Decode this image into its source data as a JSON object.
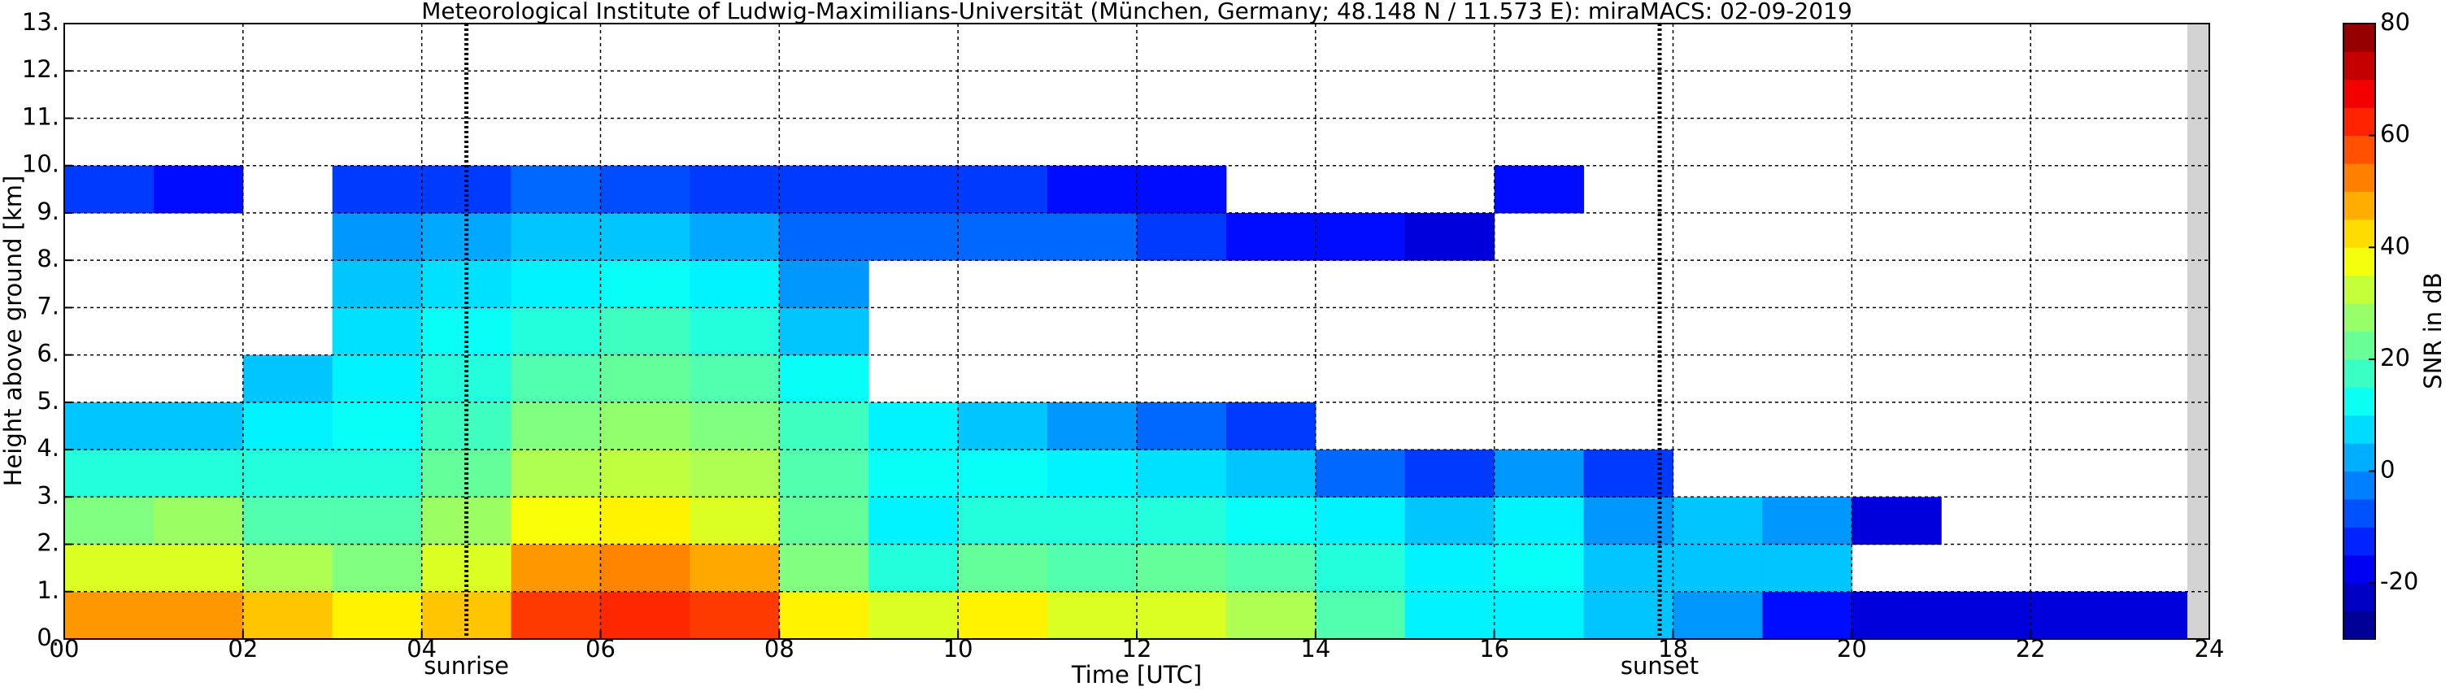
{
  "chart_data": {
    "type": "heatmap",
    "title": "Meteorological Institute of Ludwig-Maximilians-Universität (München, Germany; 48.148 N / 11.573 E):    miraMACS: 02-09-2019",
    "x_label": "Time [UTC]",
    "y_label": "Height above ground [km]",
    "x_bins": [
      0,
      1,
      2,
      3,
      4,
      5,
      6,
      7,
      8,
      9,
      10,
      11,
      12,
      13,
      14,
      15,
      16,
      17,
      18,
      19,
      20,
      21,
      22,
      23,
      24
    ],
    "y_bins": [
      0,
      1,
      2,
      3,
      4,
      5,
      6,
      7,
      8,
      9,
      10
    ],
    "z": [
      [
        50,
        50,
        45,
        40,
        45,
        60,
        62,
        60,
        40,
        35,
        40,
        35,
        35,
        30,
        20,
        10,
        10,
        5,
        0,
        -15,
        -20,
        -20,
        -20,
        -20
      ],
      [
        35,
        35,
        30,
        25,
        35,
        50,
        52,
        48,
        25,
        15,
        22,
        20,
        22,
        20,
        15,
        10,
        12,
        5,
        5,
        5,
        null,
        null,
        null,
        null
      ],
      [
        25,
        28,
        20,
        20,
        28,
        38,
        40,
        35,
        22,
        10,
        15,
        15,
        15,
        12,
        10,
        5,
        10,
        0,
        5,
        0,
        -20,
        null,
        null,
        null
      ],
      [
        15,
        15,
        15,
        15,
        22,
        30,
        32,
        30,
        20,
        12,
        12,
        10,
        8,
        5,
        -5,
        -10,
        0,
        -10,
        null,
        null,
        null,
        null,
        null,
        null
      ],
      [
        5,
        5,
        10,
        12,
        18,
        25,
        27,
        25,
        18,
        10,
        5,
        0,
        -5,
        -10,
        null,
        null,
        null,
        null,
        null,
        null,
        null,
        null,
        null,
        null
      ],
      [
        null,
        null,
        5,
        10,
        15,
        20,
        22,
        20,
        12,
        null,
        null,
        null,
        null,
        null,
        null,
        null,
        null,
        null,
        null,
        null,
        null,
        null,
        null,
        null
      ],
      [
        null,
        null,
        null,
        8,
        12,
        15,
        18,
        15,
        5,
        null,
        null,
        null,
        null,
        null,
        null,
        null,
        null,
        null,
        null,
        null,
        null,
        null,
        null,
        null
      ],
      [
        null,
        null,
        null,
        5,
        8,
        10,
        12,
        10,
        0,
        null,
        null,
        null,
        null,
        null,
        null,
        null,
        null,
        null,
        null,
        null,
        null,
        null,
        null,
        null
      ],
      [
        null,
        null,
        null,
        0,
        2,
        5,
        5,
        2,
        -5,
        -5,
        -5,
        -5,
        -10,
        -15,
        -15,
        -20,
        null,
        null,
        null,
        null,
        null,
        null,
        null,
        null
      ],
      [
        -10,
        -15,
        null,
        -10,
        -10,
        -5,
        -8,
        -10,
        -10,
        -10,
        -10,
        -15,
        -15,
        null,
        null,
        null,
        -15,
        null,
        null,
        null,
        null,
        null,
        null,
        null
      ]
    ],
    "colormap": "jet",
    "xlim": [
      0,
      24
    ],
    "xticks": [
      {
        "value": 0,
        "label": "00"
      },
      {
        "value": 2,
        "label": "02"
      },
      {
        "value": 4,
        "label": "04"
      },
      {
        "value": 6,
        "label": "06"
      },
      {
        "value": 8,
        "label": "08"
      },
      10,
      12,
      14,
      16,
      18,
      20,
      22,
      24
    ],
    "ylim": [
      0,
      13
    ],
    "yticks": [
      {
        "value": 0,
        "label": "0."
      },
      {
        "value": 1,
        "label": "1."
      },
      {
        "value": 2,
        "label": "2."
      },
      {
        "value": 3,
        "label": "3."
      },
      {
        "value": 4,
        "label": "4."
      },
      {
        "value": 5,
        "label": "5."
      },
      {
        "value": 6,
        "label": "6."
      },
      {
        "value": 7,
        "label": "7."
      },
      {
        "value": 8,
        "label": "8."
      },
      {
        "value": 9,
        "label": "9."
      },
      {
        "value": 10,
        "label": "10."
      },
      {
        "value": 11,
        "label": "11."
      },
      {
        "value": 12,
        "label": "12."
      },
      {
        "value": 13,
        "label": "13."
      }
    ],
    "grid": true,
    "annotations": [
      {
        "x": 4.5,
        "label": "sunrise"
      },
      {
        "x": 17.85,
        "label": "sunset"
      }
    ],
    "colorbar": {
      "label": "SNR in dB",
      "lim": [
        -30,
        80
      ],
      "ticks": [
        -20,
        0,
        20,
        40,
        60,
        80
      ]
    }
  }
}
